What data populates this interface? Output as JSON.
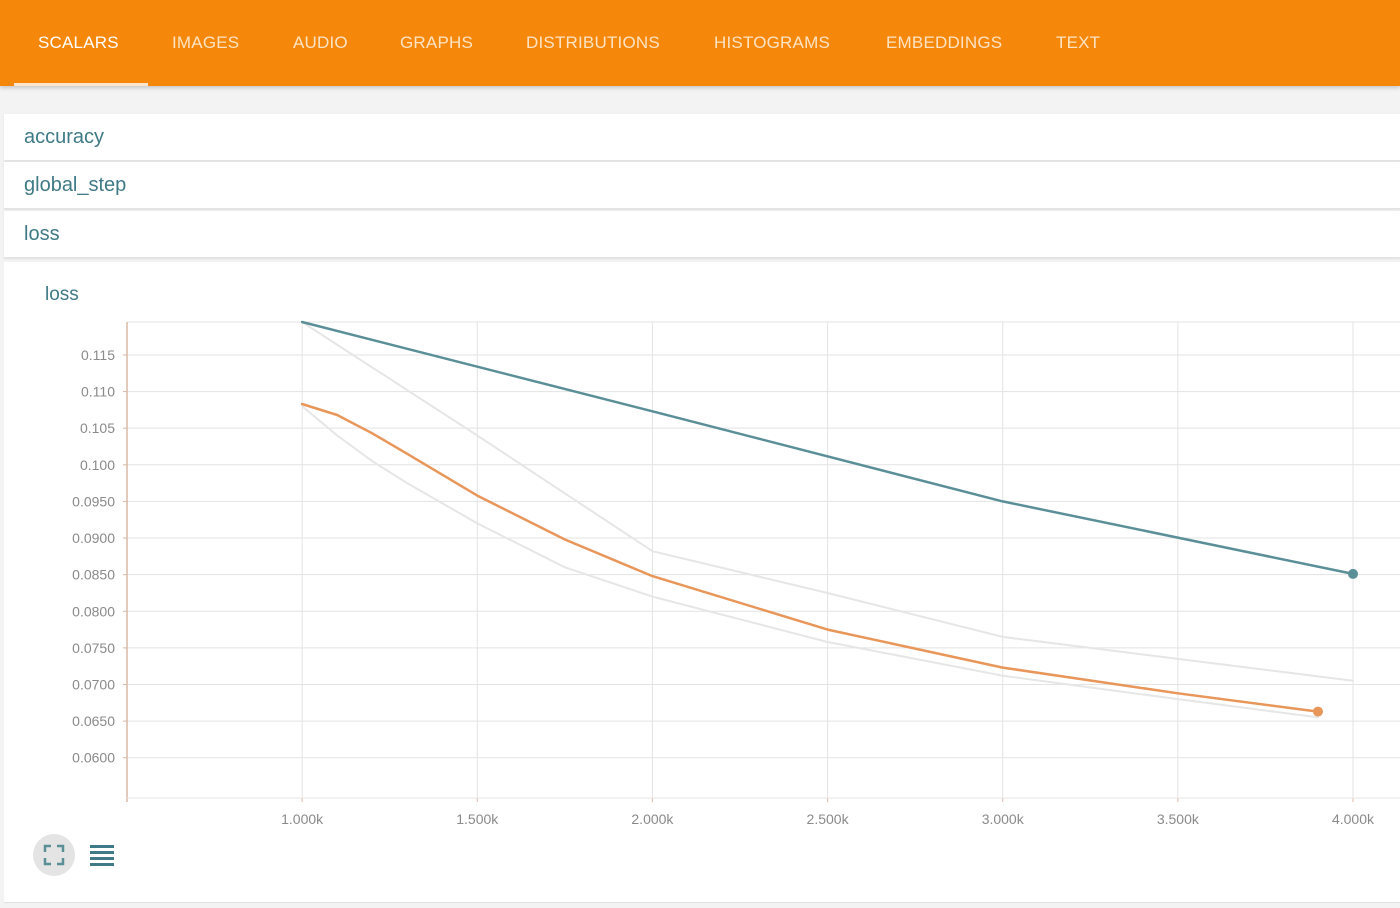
{
  "nav": {
    "tabs": [
      {
        "label": "SCALARS",
        "active": true
      },
      {
        "label": "IMAGES"
      },
      {
        "label": "AUDIO"
      },
      {
        "label": "GRAPHS"
      },
      {
        "label": "DISTRIBUTIONS"
      },
      {
        "label": "HISTOGRAMS"
      },
      {
        "label": "EMBEDDINGS"
      },
      {
        "label": "TEXT"
      }
    ]
  },
  "panels": [
    {
      "label": "accuracy",
      "expanded": false
    },
    {
      "label": "global_step",
      "expanded": false
    },
    {
      "label": "loss",
      "expanded": true
    }
  ],
  "card": {
    "title": "loss"
  },
  "controls": {
    "expand_icon": "fullscreen-icon",
    "data_icon": "list-icon"
  },
  "colors": {
    "accent": "#f5880a",
    "series_blue": "#5b8f98",
    "series_orange": "#e8965a",
    "raw": "#e6e6e6"
  },
  "chart_data": {
    "type": "line",
    "title": "loss",
    "xlabel": "",
    "ylabel": "",
    "xlim": [
      500,
      4000
    ],
    "ylim": [
      0.0545,
      0.1195
    ],
    "x_ticks": [
      "1.000k",
      "1.500k",
      "2.000k",
      "2.500k",
      "3.000k",
      "3.500k",
      "4.000k"
    ],
    "y_ticks": [
      "0.115",
      "0.110",
      "0.105",
      "0.100",
      "0.0950",
      "0.0900",
      "0.0850",
      "0.0800",
      "0.0750",
      "0.0700",
      "0.0650",
      "0.0600"
    ],
    "grid": true,
    "series": [
      {
        "role": "smoothed",
        "color": "#5b8f98",
        "x": [
          1000,
          2000,
          3000,
          4000
        ],
        "y": [
          0.1195,
          0.1073,
          0.095,
          0.0851
        ]
      },
      {
        "role": "raw",
        "color": "#e6e6e6",
        "x": [
          1000,
          1500,
          2000,
          2500,
          3000,
          3500,
          4000
        ],
        "y": [
          0.1195,
          0.104,
          0.0882,
          0.0825,
          0.0765,
          0.0735,
          0.0705
        ]
      },
      {
        "role": "smoothed",
        "color": "#e8965a",
        "x": [
          1000,
          1100,
          1200,
          1300,
          1500,
          1750,
          2000,
          2500,
          3000,
          3500,
          3900
        ],
        "y": [
          0.1083,
          0.1068,
          0.1043,
          0.1015,
          0.0958,
          0.0898,
          0.0848,
          0.0775,
          0.0723,
          0.0688,
          0.0663
        ]
      },
      {
        "role": "raw",
        "color": "#e6e6e6",
        "x": [
          1000,
          1100,
          1200,
          1300,
          1500,
          1750,
          2000,
          2500,
          3000,
          3500,
          3900
        ],
        "y": [
          0.108,
          0.104,
          0.1005,
          0.0975,
          0.092,
          0.086,
          0.082,
          0.0758,
          0.0712,
          0.068,
          0.0655
        ]
      }
    ]
  }
}
